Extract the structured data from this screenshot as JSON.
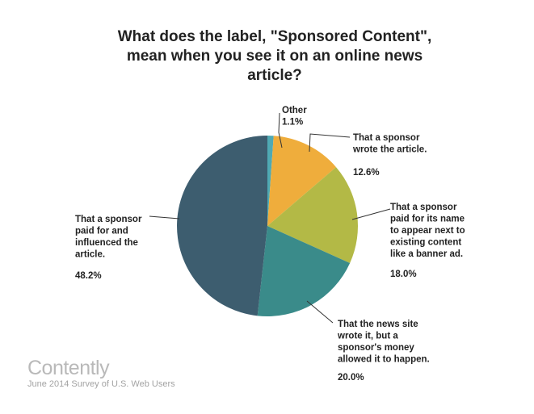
{
  "title_lines": [
    "What does the label, \"Sponsored Content\",",
    "mean when you see it on an online news",
    "article?"
  ],
  "chart_data": {
    "type": "pie",
    "title": "What does the label, \"Sponsored Content\", mean when you see it on an online news article?",
    "slices": [
      {
        "label_lines": [
          "Other"
        ],
        "value": 1.1,
        "value_text": "1.1%",
        "color": "#4fa9b3"
      },
      {
        "label_lines": [
          "That a sponsor",
          "wrote the article."
        ],
        "value": 12.6,
        "value_text": "12.6%",
        "color": "#efad3c"
      },
      {
        "label_lines": [
          "That a sponsor",
          "paid for its name",
          "to appear next to",
          "existing content",
          "like a banner ad."
        ],
        "value": 18.0,
        "value_text": "18.0%",
        "color": "#b3b946"
      },
      {
        "label_lines": [
          "That the news site",
          "wrote it, but a",
          "sponsor's money",
          "allowed it to happen."
        ],
        "value": 20.0,
        "value_text": "20.0%",
        "color": "#3a8b8a"
      },
      {
        "label_lines": [
          "That a sponsor",
          "paid for and",
          "influenced the",
          "article."
        ],
        "value": 48.2,
        "value_text": "48.2%",
        "color": "#3d5d6f"
      }
    ]
  },
  "brand": "Contently",
  "subnote": "June 2014 Survey of U.S. Web Users"
}
